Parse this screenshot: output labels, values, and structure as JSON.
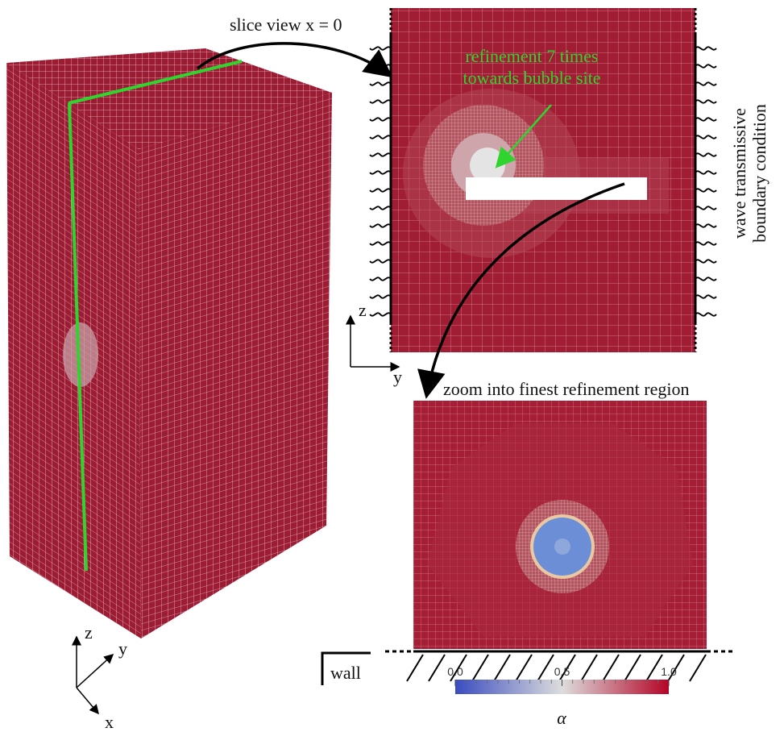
{
  "slice_view": {
    "label": "slice view x = 0",
    "annotation": [
      "refinement 7 times",
      "towards bubble site"
    ],
    "boundary_label": [
      "wave transmissive",
      "boundary condition"
    ],
    "axes": [
      "z",
      "y"
    ]
  },
  "zoom_view": {
    "label": "zoom into finest refinement region",
    "wall_label": "wall"
  },
  "box_axes": [
    "z",
    "y",
    "x"
  ],
  "colorbar": {
    "range": [
      0,
      1
    ],
    "ticks": [
      {
        "value": 0,
        "label": "0.0"
      },
      {
        "value": 0.5,
        "label": "0.5"
      },
      {
        "value": 1,
        "label": "1.0"
      }
    ],
    "label": "α"
  }
}
